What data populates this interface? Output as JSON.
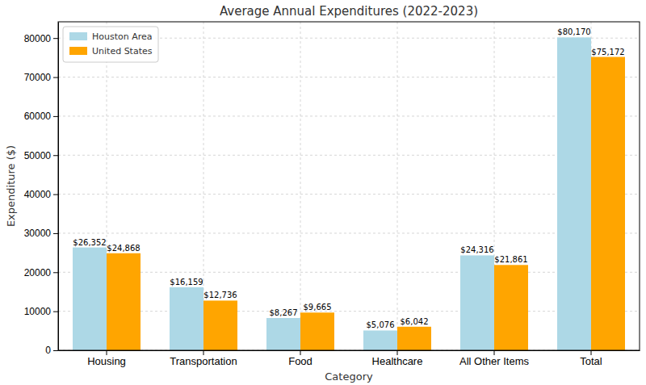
{
  "chart_data": {
    "type": "bar",
    "title": "Average Annual Expenditures (2022-2023)",
    "x_label": "Category",
    "y_label": "Expenditure ($)",
    "categories": [
      "Housing",
      "Transportation",
      "Food",
      "Healthcare",
      "All Other Items",
      "Total"
    ],
    "series": [
      {
        "name": "Houston Area",
        "color": "#add8e6",
        "values": [
          26352,
          16159,
          8267,
          5076,
          24316,
          80170
        ],
        "value_labels": [
          "$26,352",
          "$16,159",
          "$8,267",
          "$5,076",
          "$24,316",
          "$80,170"
        ]
      },
      {
        "name": "United States",
        "color": "#ffa500",
        "values": [
          24868,
          12736,
          9665,
          6042,
          21861,
          75172
        ],
        "value_labels": [
          "$24,868",
          "$12,736",
          "$9,665",
          "$6,042",
          "$21,861",
          "$75,172"
        ]
      }
    ],
    "ylim": [
      0,
      84178
    ],
    "yticks": [
      0,
      10000,
      20000,
      30000,
      40000,
      50000,
      60000,
      70000,
      80000
    ],
    "grid": true,
    "legend": "upper left",
    "data_labels": true
  }
}
